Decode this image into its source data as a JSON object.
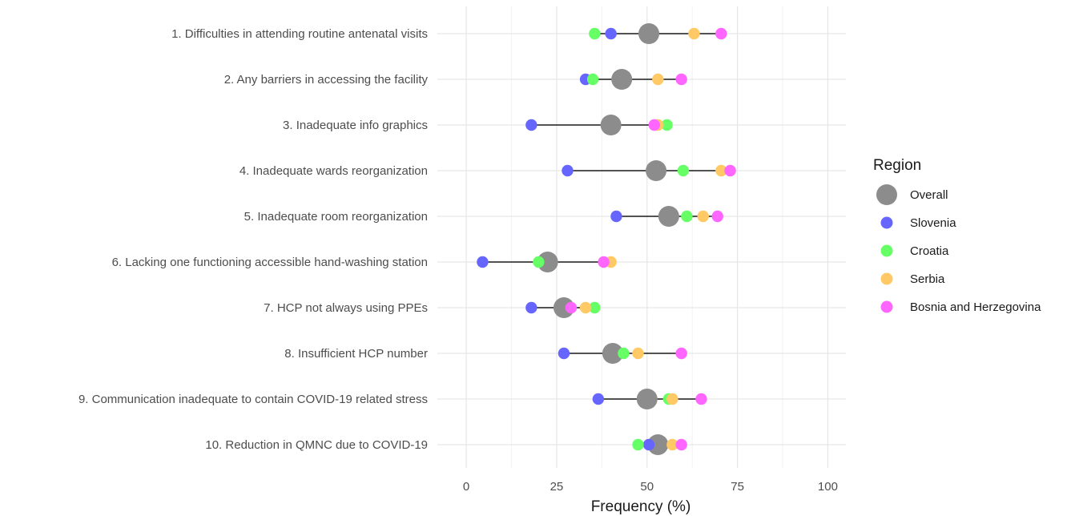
{
  "chart_data": {
    "type": "dumbbell",
    "xlabel": "Frequency (%)",
    "ylabel": "",
    "xlim": [
      -8,
      105
    ],
    "x_ticks": [
      0,
      25,
      50,
      75,
      100
    ],
    "grid": true,
    "legend_title": "Region",
    "legend_position": "right",
    "categories": [
      "1. Difficulties in attending routine antenatal visits",
      "2. Any barriers in accessing the facility",
      "3. Inadequate info graphics",
      "4. Inadequate wards reorganization",
      "5. Inadequate room reorganization",
      "6. Lacking one functioning accessible hand-washing station",
      "7. HCP not always using PPEs",
      "8. Insufficient HCP number",
      "9. Communication inadequate to contain COVID-19 related stress",
      "10. Reduction in QMNC due to COVID-19"
    ],
    "series": [
      {
        "name": "Overall",
        "color": "#8c8c8c",
        "values": [
          50.5,
          43,
          40,
          52.5,
          56,
          22.5,
          27,
          40.5,
          50,
          53
        ]
      },
      {
        "name": "Slovenia",
        "color": "#6666ff",
        "values": [
          40,
          33,
          18,
          28,
          41.5,
          4.5,
          18,
          27,
          36.5,
          50.5
        ]
      },
      {
        "name": "Croatia",
        "color": "#66ff66",
        "values": [
          35.5,
          35,
          55.5,
          60,
          61,
          20,
          35.5,
          43.5,
          56,
          47.5
        ]
      },
      {
        "name": "Serbia",
        "color": "#ffc966",
        "values": [
          63,
          53,
          53,
          70.5,
          65.5,
          40,
          33,
          47.5,
          57,
          57
        ]
      },
      {
        "name": "Bosnia and Herzegovina",
        "color": "#ff66ff",
        "values": [
          70.5,
          59.5,
          52,
          73,
          69.5,
          38,
          29,
          59.5,
          65,
          59.5
        ]
      }
    ]
  }
}
